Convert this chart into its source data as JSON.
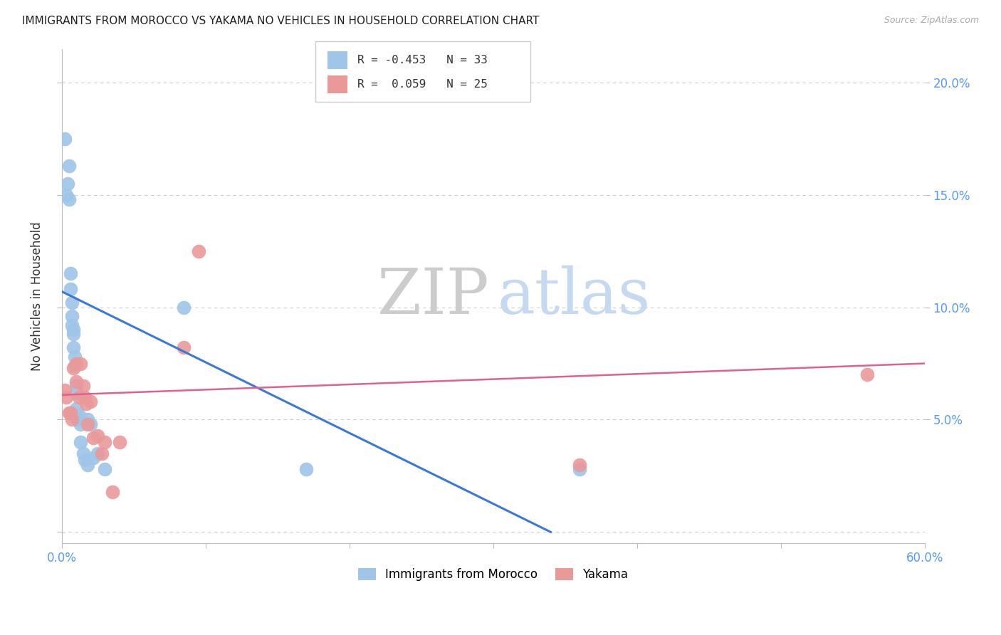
{
  "title": "IMMIGRANTS FROM MOROCCO VS YAKAMA NO VEHICLES IN HOUSEHOLD CORRELATION CHART",
  "source": "Source: ZipAtlas.com",
  "ylabel": "No Vehicles in Household",
  "xlim": [
    0.0,
    0.6
  ],
  "ylim": [
    -0.005,
    0.215
  ],
  "blue_color": "#9fc5e8",
  "pink_color": "#ea9999",
  "blue_line_color": "#3c78d8",
  "pink_line_color": "#e06090",
  "legend_blue_R": "-0.453",
  "legend_blue_N": "33",
  "legend_pink_R": " 0.059",
  "legend_pink_N": "25",
  "legend_label_blue": "Immigrants from Morocco",
  "legend_label_pink": "Yakama",
  "blue_scatter_x": [
    0.002,
    0.003,
    0.004,
    0.005,
    0.005,
    0.006,
    0.006,
    0.007,
    0.007,
    0.007,
    0.008,
    0.008,
    0.008,
    0.009,
    0.009,
    0.01,
    0.01,
    0.01,
    0.011,
    0.012,
    0.013,
    0.013,
    0.015,
    0.016,
    0.018,
    0.018,
    0.02,
    0.022,
    0.025,
    0.03,
    0.085,
    0.17,
    0.36
  ],
  "blue_scatter_y": [
    0.175,
    0.15,
    0.155,
    0.148,
    0.163,
    0.108,
    0.115,
    0.102,
    0.096,
    0.092,
    0.09,
    0.088,
    0.082,
    0.078,
    0.074,
    0.065,
    0.062,
    0.055,
    0.05,
    0.052,
    0.048,
    0.04,
    0.035,
    0.032,
    0.05,
    0.03,
    0.048,
    0.033,
    0.035,
    0.028,
    0.1,
    0.028,
    0.028
  ],
  "pink_scatter_x": [
    0.002,
    0.003,
    0.005,
    0.006,
    0.007,
    0.008,
    0.01,
    0.01,
    0.012,
    0.013,
    0.015,
    0.016,
    0.017,
    0.018,
    0.02,
    0.022,
    0.025,
    0.028,
    0.03,
    0.035,
    0.04,
    0.085,
    0.095,
    0.36,
    0.56
  ],
  "pink_scatter_y": [
    0.063,
    0.06,
    0.053,
    0.053,
    0.05,
    0.073,
    0.075,
    0.067,
    0.06,
    0.075,
    0.065,
    0.06,
    0.057,
    0.048,
    0.058,
    0.042,
    0.043,
    0.035,
    0.04,
    0.018,
    0.04,
    0.082,
    0.125,
    0.03,
    0.07
  ],
  "blue_line_x": [
    0.0,
    0.34
  ],
  "blue_line_y": [
    0.107,
    0.0
  ],
  "pink_line_x": [
    0.0,
    0.6
  ],
  "pink_line_y": [
    0.061,
    0.075
  ],
  "watermark_ZIP": "ZIP",
  "watermark_atlas": "atlas",
  "background_color": "#ffffff",
  "grid_color": "#cccccc"
}
